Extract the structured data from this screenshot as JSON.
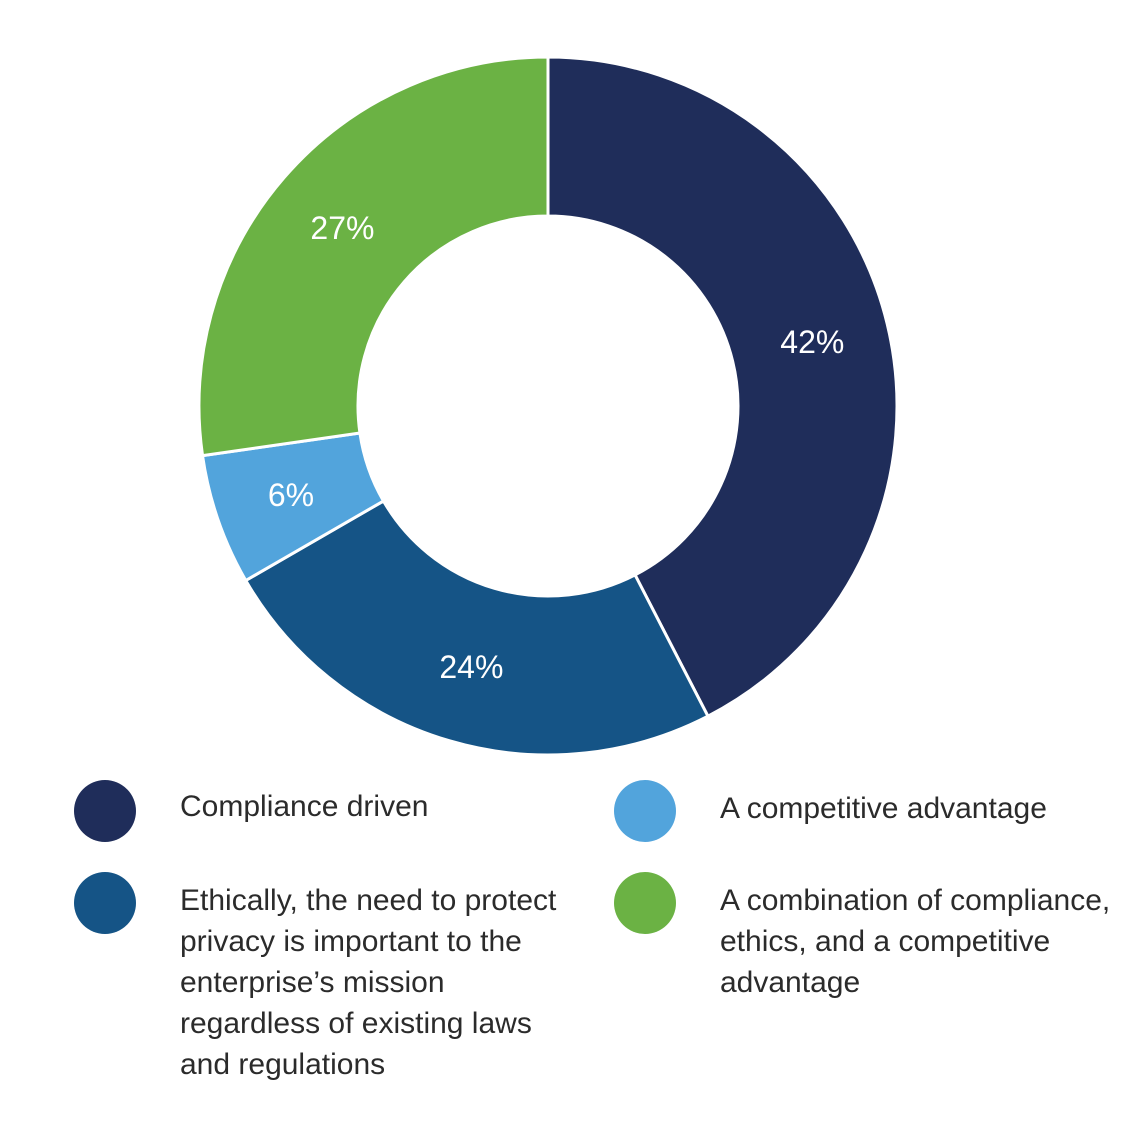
{
  "chart_data": {
    "type": "pie",
    "subtype": "donut",
    "title": "",
    "slices": [
      {
        "label": "Compliance driven",
        "value": 42,
        "display": "42%",
        "color": "#1F2D5A"
      },
      {
        "label": "Ethically, the need to protect privacy is important to the enterprise’s mission regardless of existing laws and regulations",
        "value": 24,
        "display": "24%",
        "color": "#155486"
      },
      {
        "label": "A competitive advantage",
        "value": 6,
        "display": "6%",
        "color": "#52A4DC"
      },
      {
        "label": "A combination of compliance, ethics, and a competitive advantage",
        "value": 27,
        "display": "27%",
        "color": "#6BB244"
      }
    ],
    "legend": {
      "placement": "bottom",
      "columns": 2,
      "items": [
        {
          "label": "Compliance driven",
          "color": "#1F2D5A"
        },
        {
          "label": "Ethically, the need to protect privacy is important to the enterprise’s mission regardless of existing laws and regulations",
          "color": "#155486"
        },
        {
          "label": "A competitive advantage",
          "color": "#52A4DC"
        },
        {
          "label": "A combination of compliance, ethics, and a competitive advantage",
          "color": "#6BB244"
        }
      ]
    },
    "start_angle": "12 o'clock",
    "direction": "clockwise",
    "slice_label_color": "#FFFFFF"
  }
}
